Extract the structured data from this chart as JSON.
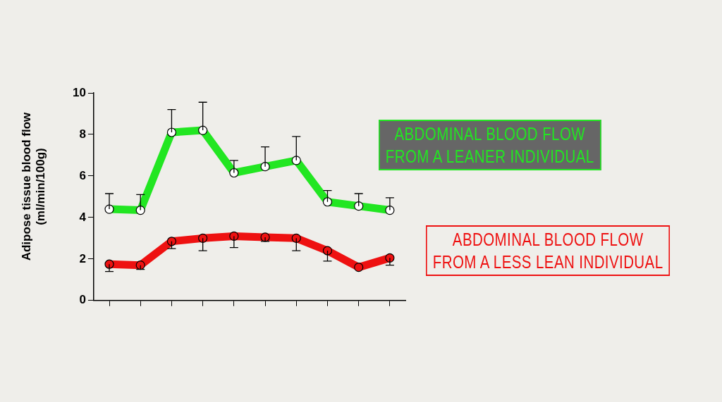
{
  "chart_data": {
    "type": "line",
    "ylabel": "Adipose tissue blood flow\n(ml/min/100g)",
    "categories": [
      null,
      null,
      null,
      null,
      null,
      null,
      null,
      null,
      null,
      null
    ],
    "ylim": [
      0,
      10
    ],
    "yticks": [
      0,
      2,
      4,
      6,
      8,
      10
    ],
    "tick_labels": "y",
    "grid": false,
    "marker": "circle",
    "line_style": "solid",
    "series": [
      {
        "name": "ABDOMINAL BLOOD FLOW\nFROM A LEANER INDIVIDUAL",
        "color": "#22e622",
        "values": [
          4.4,
          4.35,
          8.1,
          8.2,
          6.15,
          6.45,
          6.75,
          4.75,
          4.55,
          4.35
        ],
        "errors": [
          [
            4.4,
            5.15
          ],
          [
            4.35,
            5.1
          ],
          [
            8.1,
            9.2
          ],
          [
            8.2,
            9.55
          ],
          [
            6.15,
            6.75
          ],
          [
            6.45,
            7.4
          ],
          [
            6.75,
            7.9
          ],
          [
            4.75,
            5.3
          ],
          [
            4.55,
            5.15
          ],
          [
            4.35,
            4.95
          ]
        ]
      },
      {
        "name": "ABDOMINAL BLOOD FLOW\nFROM A LESS LEAN INDIVIDUAL",
        "color": "#ee1111",
        "values": [
          1.75,
          1.7,
          2.85,
          3.0,
          3.1,
          3.05,
          3.0,
          2.4,
          1.6,
          2.05
        ],
        "errors": [
          [
            1.4,
            1.75
          ],
          [
            1.5,
            1.7
          ],
          [
            2.5,
            2.85
          ],
          [
            2.4,
            3.0
          ],
          [
            2.55,
            3.1
          ],
          [
            2.85,
            3.05
          ],
          [
            2.4,
            3.0
          ],
          [
            1.9,
            2.4
          ],
          null,
          [
            1.7,
            2.05
          ]
        ]
      }
    ]
  }
}
